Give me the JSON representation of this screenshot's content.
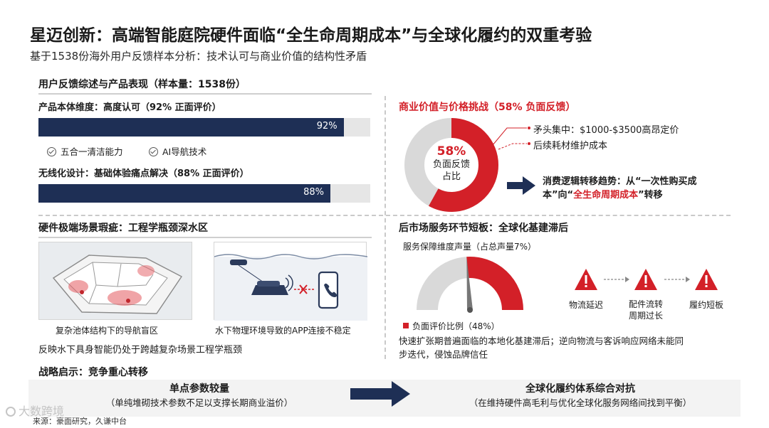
{
  "header": {
    "title": "星迈创新：高端智能庭院硬件面临“全生命周期成本”与全球化履约的双重考验",
    "subtitle": "基于1538份海外用户反馈样本分析：技术认可与商业价值的结构性矛盾"
  },
  "feedback": {
    "heading": "用户反馈综述与产品表现（样本量：1538份）",
    "product": {
      "label": "产品本体维度：高度认可（92% 正面评价）",
      "value": 92,
      "value_label": "92%",
      "tags": [
        "五合一清洁能力",
        "AI导航技术"
      ]
    },
    "wireless": {
      "label": "无线化设计：基础体验痛点解决（88% 正面评价）",
      "value": 88,
      "value_label": "88%"
    }
  },
  "commercial": {
    "heading": "商业价值与价格挑战（58% 负面反馈）",
    "donut": {
      "value": 58,
      "center_pct": "58%",
      "center_line1": "负面反馈",
      "center_line2": "占比"
    },
    "points": [
      "矛头集中：$1000-$3500高昂定价",
      "后续耗材维护成本"
    ],
    "trend_line1_a": "消费逻辑转移趋势：从“一次性购买成",
    "trend_line2_a": "本”向“",
    "trend_line2_red": "全生命周期成本",
    "trend_line2_b": "”转移"
  },
  "hardware": {
    "heading": "硬件极端场景瑕疵：工程学瓶颈深水区",
    "caption_left": "复杂池体结构下的导航盲区",
    "caption_right": "水下物理环境导致的APP连接不稳定",
    "summary": "反映水下具身智能仍处于跨越复杂场景工程学瓶颈"
  },
  "aftermarket": {
    "heading": "后市场服务环节短板：全球化基建滞后",
    "gauge_title": "服务保障维度声量（占总声量7%）",
    "gauge_value": 48,
    "gauge_legend": "负面评价比例（48%）",
    "issues": [
      {
        "label": "物流延迟"
      },
      {
        "label": "配件流转",
        "label2": "周期过长"
      },
      {
        "label": "履约短板"
      }
    ],
    "desc_line1": "快速扩张期普遍面临的本地化基建滞后；逆向物流与客诉响应网络未能同",
    "desc_line2": "步迭代，侵蚀品牌信任"
  },
  "strategy": {
    "heading": "战略启示：竞争重心转移",
    "from_title": "单点参数较量",
    "from_sub": "（单纯堆砌技术参数不足以支撑长期商业溢价）",
    "to_title": "全球化履约体系综合对抗",
    "to_sub": "（在维持硬件高毛利与优化全球化服务网络间找到平衡）"
  },
  "footer": {
    "source": "来源：豪面研究，久谦中台",
    "watermark": "大数跨境"
  },
  "colors": {
    "navy": "#1e2f55",
    "red": "#d32028",
    "gray": "#d9d9d9"
  }
}
